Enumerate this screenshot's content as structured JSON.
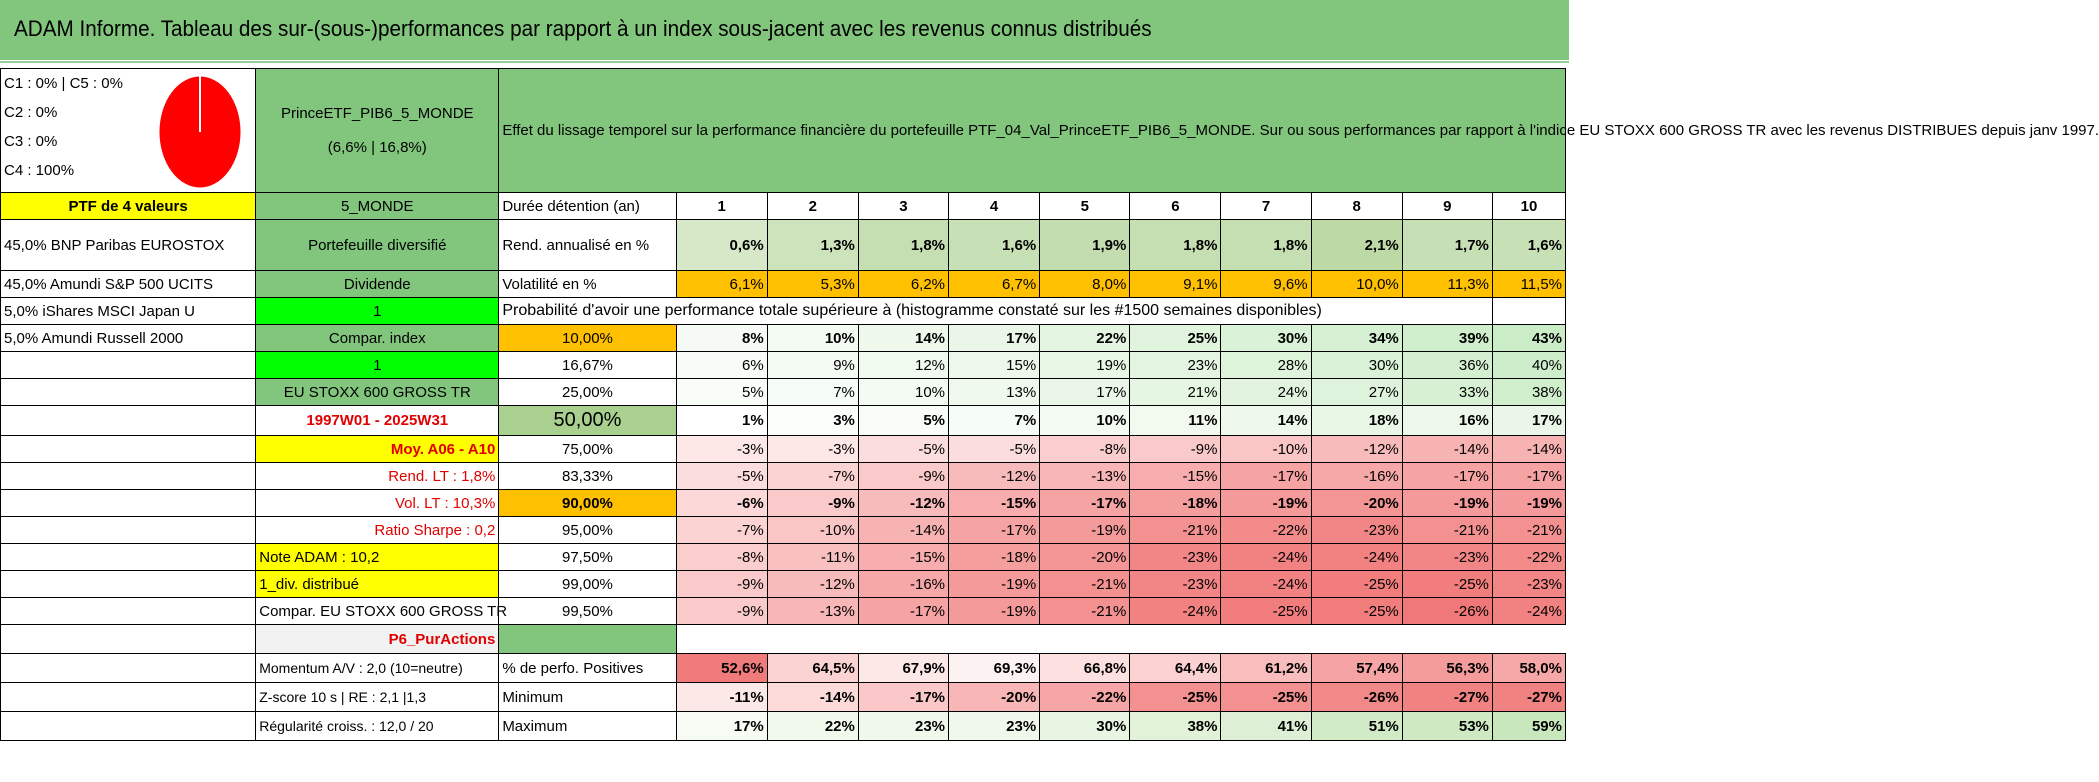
{
  "header": {
    "title": "ADAM Informe. Tableau des sur-(sous-)performances par rapport à un index sous-jacent avec les revenus connus distribués"
  },
  "allocation": {
    "lines": [
      "C1 : 0% | C5 : 0%",
      "C2 : 0%",
      "C3 : 0%",
      "C4 : 100%"
    ],
    "pie_slice_color": "#ff0000"
  },
  "portfolio": {
    "name": "PrinceETF_PIB6_5_MONDE",
    "stats": "(6,6% | 16,8%)",
    "description": "Effet du lissage temporel sur la performance financière du portefeuille PTF_04_Val_PrinceETF_PIB6_5_MONDE. Sur ou sous performances par rapport à l'indice EU STOXX 600 GROSS TR avec les revenus DISTRIBUES depuis janv 1997."
  },
  "left_col": {
    "title": "PTF de 4 valeurs",
    "holdings": [
      "45,0% BNP Paribas EUROSTOX",
      "45,0% Amundi S&P 500 UCITS",
      "5,0% iShares MSCI Japan U",
      "5,0% Amundi Russell 2000"
    ]
  },
  "mid_col": {
    "zone": "5_MONDE",
    "type": "Portefeuille diversifié",
    "dividend": "Dividende",
    "one_a": "1",
    "compar_index": "Compar. index",
    "one_b": "1",
    "index_name": "EU STOXX 600 GROSS TR",
    "period": "1997W01 - 2025W31",
    "moy": "Moy. A06 - A10",
    "rend_lt": "Rend. LT : 1,8%",
    "vol_lt": "Vol. LT : 10,3%",
    "sharpe": "Ratio Sharpe : 0,2",
    "note": "Note ADAM : 10,2",
    "div": "1_div. distribué",
    "compar": "Compar. EU STOXX 600 GROSS TR",
    "pur": "P6_PurActions",
    "momentum": "Momentum A/V : 2,0 (10=neutre)",
    "zscore": "Z-score 10 s | RE : 2,1 |1,3",
    "regularite": "Régularité croiss. : 12,0 / 20"
  },
  "table": {
    "duration_label": "Durée détention (an)",
    "years": [
      "1",
      "2",
      "3",
      "4",
      "5",
      "6",
      "7",
      "8",
      "9",
      "10"
    ],
    "rend_label": "Rend. annualisé en %",
    "rend": [
      "0,6%",
      "1,3%",
      "1,8%",
      "1,6%",
      "1,9%",
      "1,8%",
      "1,8%",
      "2,1%",
      "1,7%",
      "1,6%"
    ],
    "vol_label": "Volatilité en %",
    "vol": [
      "6,1%",
      "5,3%",
      "6,2%",
      "6,7%",
      "8,0%",
      "9,1%",
      "9,6%",
      "10,0%",
      "11,3%",
      "11,5%"
    ],
    "prob_title": "Probabilité d'avoir une performance totale supérieure à (histogramme constaté sur les #1500 semaines disponibles)",
    "prob_rows": [
      {
        "label": "10,00%",
        "values": [
          "8%",
          "10%",
          "14%",
          "17%",
          "22%",
          "25%",
          "30%",
          "34%",
          "39%",
          "43%"
        ]
      },
      {
        "label": "16,67%",
        "values": [
          "6%",
          "9%",
          "12%",
          "15%",
          "19%",
          "23%",
          "28%",
          "30%",
          "36%",
          "40%"
        ]
      },
      {
        "label": "25,00%",
        "values": [
          "5%",
          "7%",
          "10%",
          "13%",
          "17%",
          "21%",
          "24%",
          "27%",
          "33%",
          "38%"
        ]
      },
      {
        "label": "50,00%",
        "values": [
          "1%",
          "3%",
          "5%",
          "7%",
          "10%",
          "11%",
          "14%",
          "18%",
          "16%",
          "17%"
        ]
      },
      {
        "label": "75,00%",
        "values": [
          "-3%",
          "-3%",
          "-5%",
          "-5%",
          "-8%",
          "-9%",
          "-10%",
          "-12%",
          "-14%",
          "-14%"
        ]
      },
      {
        "label": "83,33%",
        "values": [
          "-5%",
          "-7%",
          "-9%",
          "-12%",
          "-13%",
          "-15%",
          "-17%",
          "-16%",
          "-17%",
          "-17%"
        ]
      },
      {
        "label": "90,00%",
        "values": [
          "-6%",
          "-9%",
          "-12%",
          "-15%",
          "-17%",
          "-18%",
          "-19%",
          "-20%",
          "-19%",
          "-19%"
        ]
      },
      {
        "label": "95,00%",
        "values": [
          "-7%",
          "-10%",
          "-14%",
          "-17%",
          "-19%",
          "-21%",
          "-22%",
          "-23%",
          "-21%",
          "-21%"
        ]
      },
      {
        "label": "97,50%",
        "values": [
          "-8%",
          "-11%",
          "-15%",
          "-18%",
          "-20%",
          "-23%",
          "-24%",
          "-24%",
          "-23%",
          "-22%"
        ]
      },
      {
        "label": "99,00%",
        "values": [
          "-9%",
          "-12%",
          "-16%",
          "-19%",
          "-21%",
          "-23%",
          "-24%",
          "-25%",
          "-25%",
          "-23%"
        ]
      },
      {
        "label": "99,50%",
        "values": [
          "-9%",
          "-13%",
          "-17%",
          "-19%",
          "-21%",
          "-24%",
          "-25%",
          "-25%",
          "-26%",
          "-24%"
        ]
      }
    ],
    "pos_label": "% de perfo. Positives",
    "pos": [
      "52,6%",
      "64,5%",
      "67,9%",
      "69,3%",
      "66,8%",
      "64,4%",
      "61,2%",
      "57,4%",
      "56,3%",
      "58,0%"
    ],
    "min_label": "Minimum",
    "min": [
      "-11%",
      "-14%",
      "-17%",
      "-20%",
      "-22%",
      "-25%",
      "-25%",
      "-26%",
      "-27%",
      "-27%"
    ],
    "max_label": "Maximum",
    "max": [
      "17%",
      "22%",
      "23%",
      "23%",
      "30%",
      "38%",
      "41%",
      "51%",
      "53%",
      "59%"
    ]
  }
}
